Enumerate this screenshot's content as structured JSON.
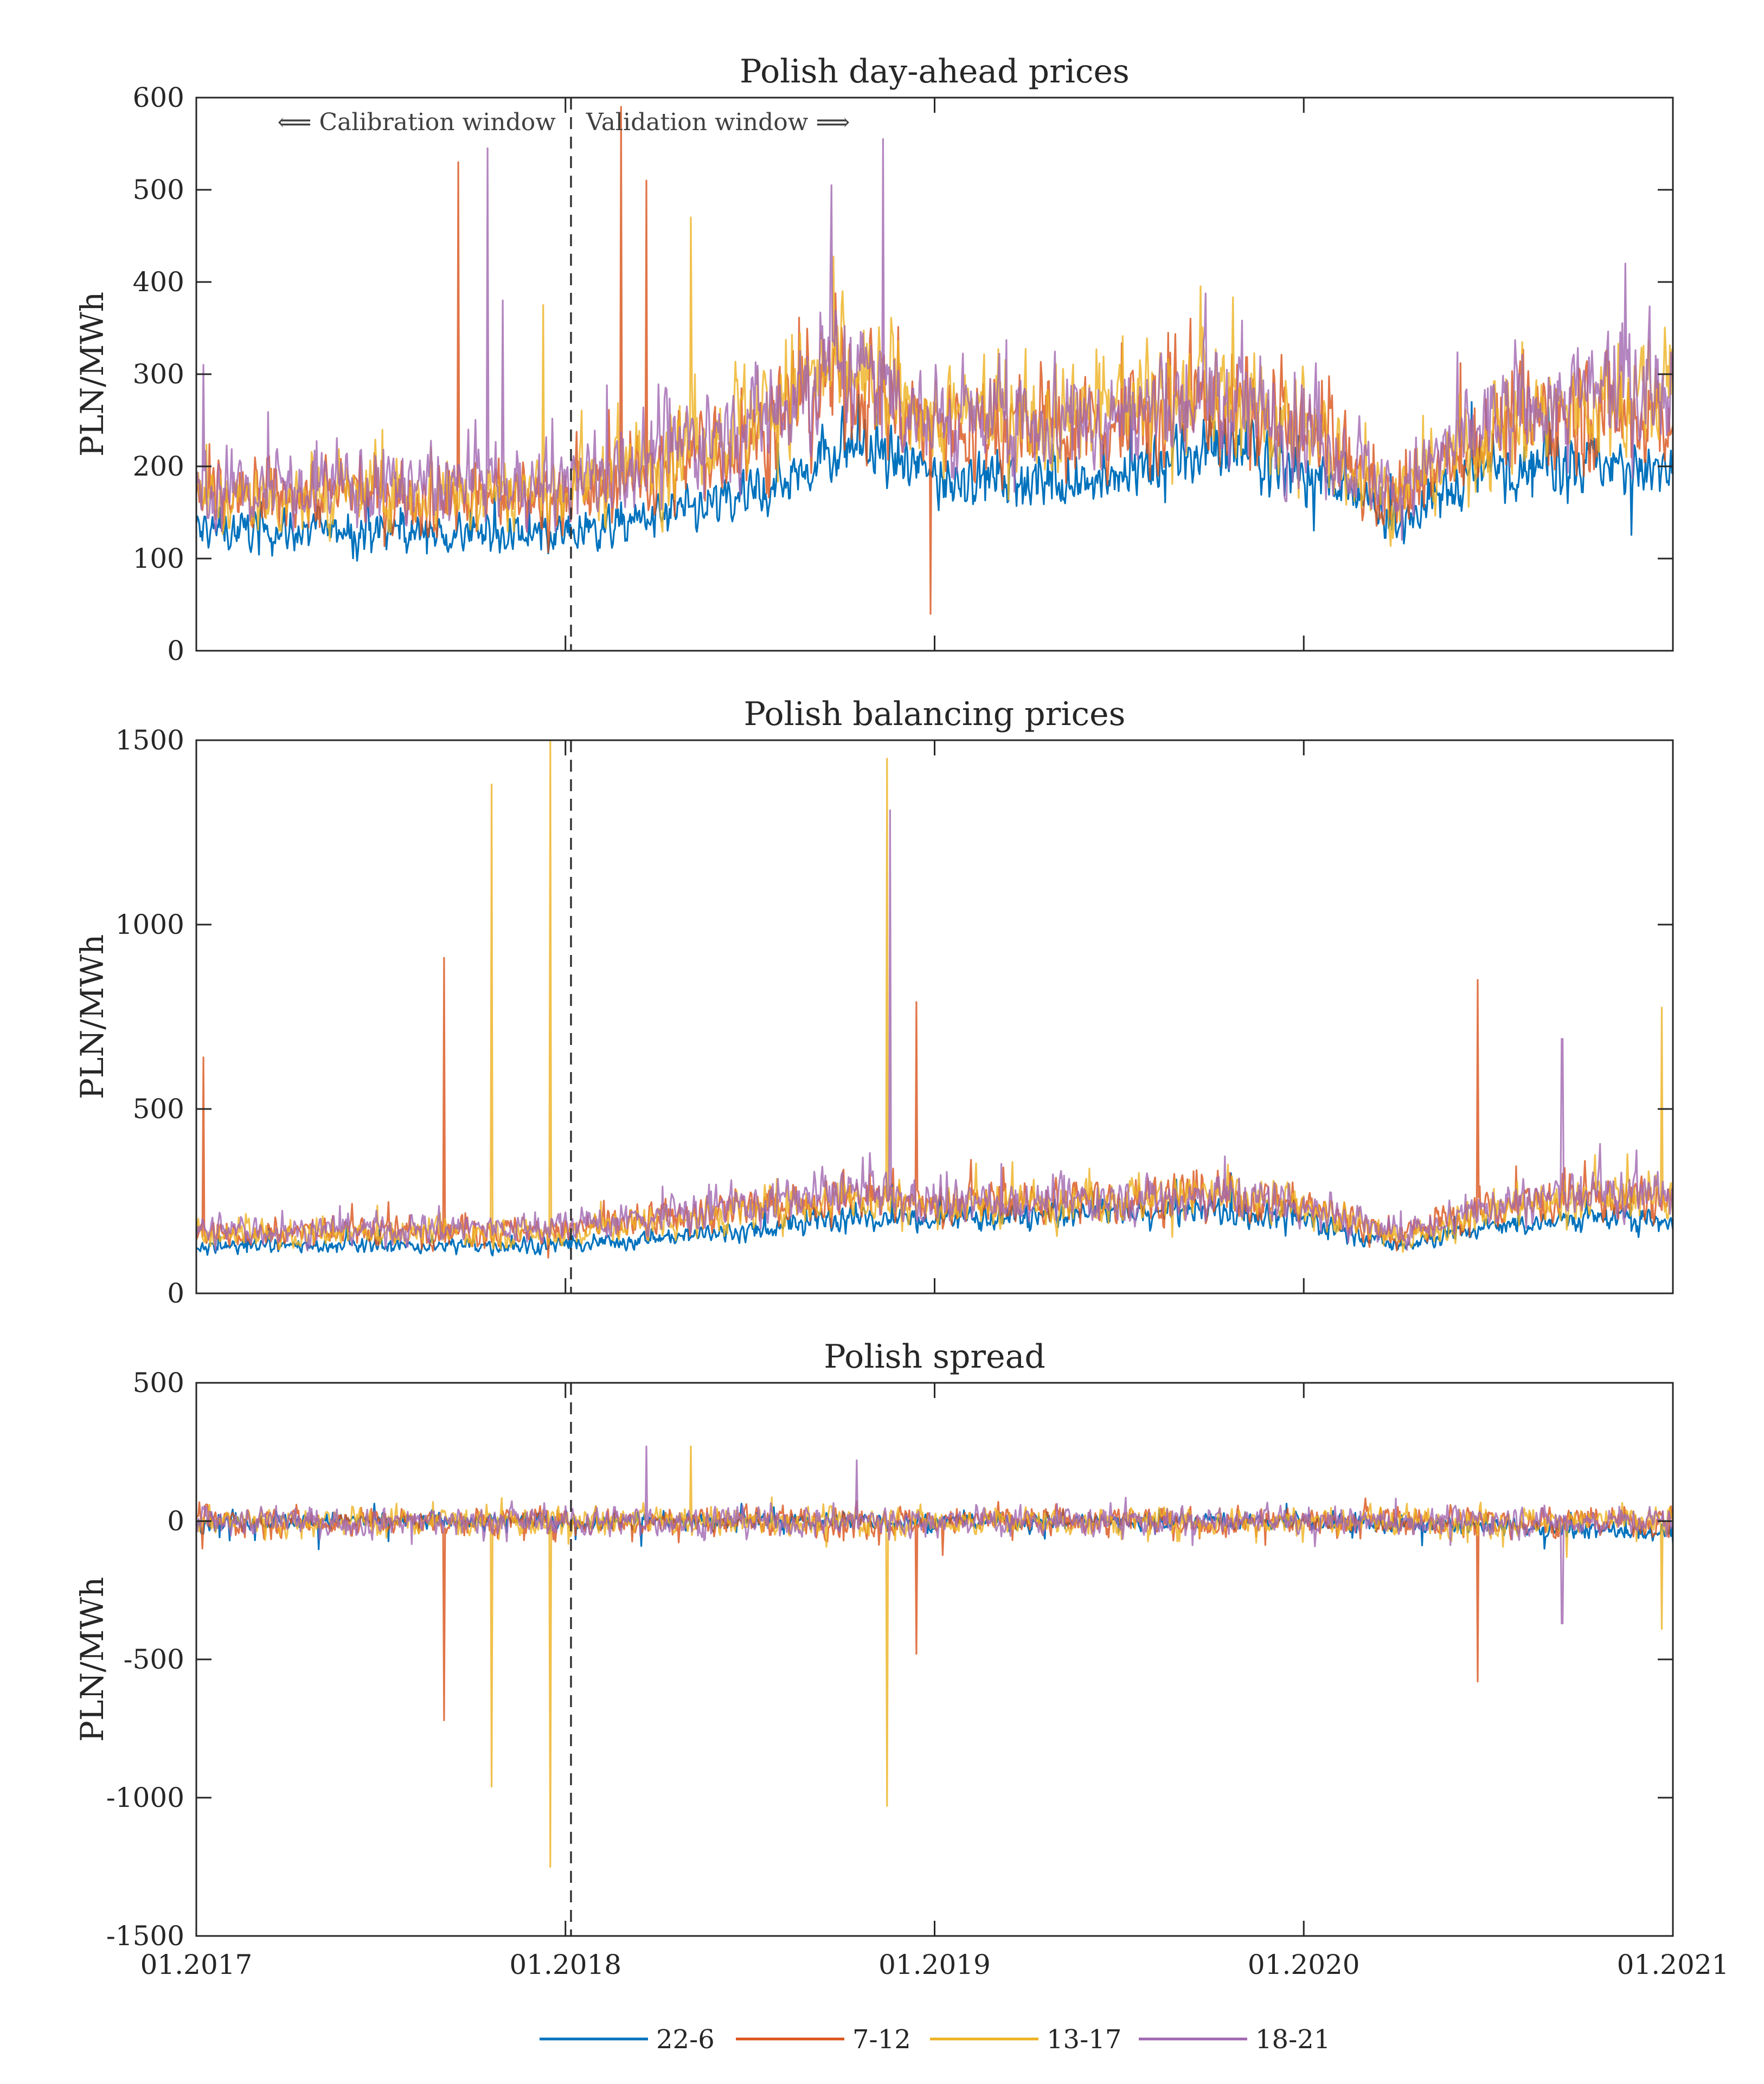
{
  "chart_data": [
    {
      "type": "line",
      "title": "Polish day-ahead prices",
      "ylabel": "PLN/MWh",
      "xlabel": "",
      "ylim": [
        0,
        600
      ],
      "yticks": [
        0,
        100,
        200,
        300,
        400,
        500,
        600
      ],
      "x_range_years": [
        2017,
        2021
      ],
      "split_date": "01.2018",
      "annotation_left": "⟸ Calibration window",
      "annotation_right": "Validation window ⟹",
      "series": [
        {
          "name": "22-6",
          "color": "#0072BD",
          "x": [
            2017,
            2017.5,
            2018,
            2018.5,
            2018.75,
            2019,
            2019.5,
            2019.75,
            2020,
            2020.25,
            2020.5,
            2020.75,
            2021
          ],
          "values": [
            130,
            130,
            125,
            165,
            225,
            190,
            185,
            225,
            195,
            140,
            200,
            210,
            190
          ]
        },
        {
          "name": "7-12",
          "color": "#D95319",
          "x": [
            2017,
            2017.5,
            2018,
            2018.5,
            2018.75,
            2019,
            2019.5,
            2019.75,
            2020,
            2020.25,
            2020.5,
            2020.75,
            2021
          ],
          "values": [
            165,
            170,
            165,
            230,
            300,
            240,
            245,
            270,
            240,
            160,
            240,
            260,
            260
          ]
        },
        {
          "name": "13-17",
          "color": "#EDB120",
          "x": [
            2017,
            2017.5,
            2018,
            2018.5,
            2018.75,
            2019,
            2019.5,
            2019.75,
            2020,
            2020.25,
            2020.5,
            2020.75,
            2021
          ],
          "values": [
            160,
            175,
            170,
            255,
            310,
            250,
            270,
            280,
            240,
            165,
            240,
            265,
            280
          ]
        },
        {
          "name": "18-21",
          "color": "#A066B0",
          "x": [
            2017,
            2017.5,
            2018,
            2018.5,
            2018.75,
            2019,
            2019.5,
            2019.75,
            2020,
            2020.25,
            2020.5,
            2020.75,
            2021
          ],
          "values": [
            175,
            180,
            180,
            250,
            315,
            250,
            255,
            275,
            245,
            170,
            250,
            275,
            300
          ]
        }
      ],
      "spikes": [
        {
          "x": 2017.02,
          "value": 310,
          "series": "18-21"
        },
        {
          "x": 2017.71,
          "value": 530,
          "series": "7-12"
        },
        {
          "x": 2017.79,
          "value": 545,
          "series": "18-21"
        },
        {
          "x": 2017.83,
          "value": 380,
          "series": "18-21"
        },
        {
          "x": 2017.94,
          "value": 375,
          "series": "13-17"
        },
        {
          "x": 2018.15,
          "value": 590,
          "series": "7-12"
        },
        {
          "x": 2018.22,
          "value": 510,
          "series": "7-12"
        },
        {
          "x": 2018.34,
          "value": 470,
          "series": "13-17"
        },
        {
          "x": 2018.72,
          "value": 505,
          "series": "18-21"
        },
        {
          "x": 2018.86,
          "value": 555,
          "series": "18-21"
        },
        {
          "x": 2018.99,
          "value": 40,
          "series": "7-12"
        },
        {
          "x": 2020.87,
          "value": 420,
          "series": "18-21"
        }
      ]
    },
    {
      "type": "line",
      "title": "Polish balancing prices",
      "ylabel": "PLN/MWh",
      "xlabel": "",
      "ylim": [
        0,
        1500
      ],
      "yticks": [
        0,
        500,
        1000,
        1500
      ],
      "x_range_years": [
        2017,
        2021
      ],
      "split_date": "01.2018",
      "series": [
        {
          "name": "22-6",
          "color": "#0072BD",
          "x": [
            2017,
            2017.5,
            2018,
            2018.5,
            2018.75,
            2019,
            2019.5,
            2019.75,
            2020,
            2020.25,
            2020.5,
            2020.75,
            2021
          ],
          "values": [
            130,
            130,
            130,
            170,
            205,
            200,
            220,
            225,
            200,
            130,
            180,
            205,
            200
          ]
        },
        {
          "name": "7-12",
          "color": "#D95319",
          "x": [
            2017,
            2017.5,
            2018,
            2018.5,
            2018.75,
            2019,
            2019.5,
            2019.75,
            2020,
            2020.25,
            2020.5,
            2020.75,
            2021
          ],
          "values": [
            160,
            170,
            170,
            230,
            270,
            240,
            255,
            265,
            240,
            155,
            230,
            260,
            250
          ]
        },
        {
          "name": "13-17",
          "color": "#EDB120",
          "x": [
            2017,
            2017.5,
            2018,
            2018.5,
            2018.75,
            2019,
            2019.5,
            2019.75,
            2020,
            2020.25,
            2020.5,
            2020.75,
            2021
          ],
          "values": [
            155,
            165,
            165,
            225,
            265,
            230,
            260,
            265,
            235,
            150,
            225,
            260,
            265
          ]
        },
        {
          "name": "18-21",
          "color": "#A066B0",
          "x": [
            2017,
            2017.5,
            2018,
            2018.5,
            2018.75,
            2019,
            2019.5,
            2019.75,
            2020,
            2020.25,
            2020.5,
            2020.75,
            2021
          ],
          "values": [
            170,
            175,
            180,
            240,
            280,
            245,
            255,
            265,
            240,
            160,
            240,
            270,
            270
          ]
        }
      ],
      "spikes": [
        {
          "x": 2017.02,
          "value": 640,
          "series": "7-12"
        },
        {
          "x": 2017.67,
          "value": 910,
          "series": "7-12"
        },
        {
          "x": 2017.8,
          "value": 1380,
          "series": "13-17"
        },
        {
          "x": 2017.96,
          "value": 1500,
          "series": "13-17"
        },
        {
          "x": 2018.87,
          "value": 1450,
          "series": "13-17"
        },
        {
          "x": 2018.88,
          "value": 1310,
          "series": "18-21"
        },
        {
          "x": 2018.95,
          "value": 790,
          "series": "7-12"
        },
        {
          "x": 2020.47,
          "value": 850,
          "series": "7-12"
        },
        {
          "x": 2020.7,
          "value": 690,
          "series": "18-21"
        },
        {
          "x": 2020.97,
          "value": 775,
          "series": "13-17"
        }
      ]
    },
    {
      "type": "line",
      "title": "Polish spread",
      "ylabel": "PLN/MWh",
      "xlabel": "",
      "ylim": [
        -1500,
        500
      ],
      "yticks": [
        -1500,
        -1000,
        -500,
        0,
        500
      ],
      "x_range_years": [
        2017,
        2021
      ],
      "split_date": "01.2018",
      "series": [
        {
          "name": "22-6",
          "color": "#0072BD",
          "x": [
            2017,
            2018,
            2019,
            2020,
            2021
          ],
          "values": [
            0,
            0,
            0,
            0,
            -40
          ]
        },
        {
          "name": "7-12",
          "color": "#D95319",
          "x": [
            2017,
            2018,
            2019,
            2020,
            2021
          ],
          "values": [
            0,
            0,
            0,
            0,
            0
          ]
        },
        {
          "name": "13-17",
          "color": "#EDB120",
          "x": [
            2017,
            2018,
            2019,
            2020,
            2021
          ],
          "values": [
            0,
            0,
            0,
            0,
            0
          ]
        },
        {
          "name": "18-21",
          "color": "#A066B0",
          "x": [
            2017,
            2018,
            2019,
            2020,
            2021
          ],
          "values": [
            0,
            0,
            0,
            0,
            0
          ]
        }
      ],
      "spikes": [
        {
          "x": 2017.67,
          "value": -720,
          "series": "7-12"
        },
        {
          "x": 2017.8,
          "value": -960,
          "series": "13-17"
        },
        {
          "x": 2017.96,
          "value": -1250,
          "series": "13-17"
        },
        {
          "x": 2018.87,
          "value": -1030,
          "series": "13-17"
        },
        {
          "x": 2018.95,
          "value": -480,
          "series": "7-12"
        },
        {
          "x": 2020.47,
          "value": -580,
          "series": "7-12"
        },
        {
          "x": 2020.7,
          "value": -370,
          "series": "18-21"
        },
        {
          "x": 2020.97,
          "value": -390,
          "series": "13-17"
        },
        {
          "x": 2018.22,
          "value": 270,
          "series": "18-21"
        },
        {
          "x": 2018.34,
          "value": 270,
          "series": "13-17"
        },
        {
          "x": 2018.79,
          "value": 220,
          "series": "18-21"
        }
      ]
    }
  ],
  "xaxis": {
    "tick_labels": [
      "01.2017",
      "01.2018",
      "01.2019",
      "01.2020",
      "01.2021"
    ],
    "tick_values": [
      2017,
      2018,
      2019,
      2020,
      2021
    ]
  },
  "legend": {
    "position": "bottom-center",
    "entries": [
      {
        "label": "22-6",
        "color": "#0072BD"
      },
      {
        "label": "7-12",
        "color": "#D95319"
      },
      {
        "label": "13-17",
        "color": "#EDB120"
      },
      {
        "label": "18-21",
        "color": "#A066B0"
      }
    ]
  }
}
